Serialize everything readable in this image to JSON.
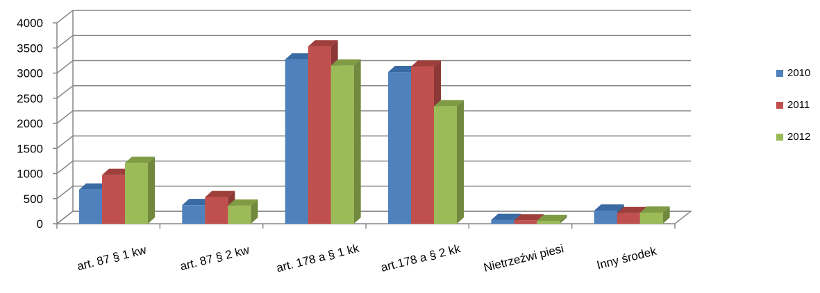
{
  "chart_data": {
    "type": "bar",
    "style": "3d-clustered-column",
    "categories": [
      "art. 87 § 1 kw",
      "art. 87 § 2 kw",
      "art. 178 a § 1 kk",
      "art.178 a § 2 kk",
      "Nietrzeźwi piesi",
      "Inny środek"
    ],
    "series": [
      {
        "name": "2010",
        "values": [
          680,
          370,
          3270,
          3020,
          75,
          260
        ],
        "color": "#4f81bd",
        "side": "#385d8a",
        "top": "#3a6aa3"
      },
      {
        "name": "2011",
        "values": [
          970,
          530,
          3530,
          3130,
          65,
          210
        ],
        "color": "#c0504d",
        "side": "#8c3836",
        "top": "#9e3f3c"
      },
      {
        "name": "2012",
        "values": [
          1210,
          360,
          3150,
          2340,
          55,
          220
        ],
        "color": "#9bbb59",
        "side": "#71893f",
        "top": "#7f9c45"
      }
    ],
    "yticks": [
      "0",
      "500",
      "1000",
      "1500",
      "2000",
      "2500",
      "3000",
      "3500",
      "4000"
    ],
    "ylim": [
      0,
      4000
    ],
    "grid": true,
    "legend_position": "right"
  }
}
